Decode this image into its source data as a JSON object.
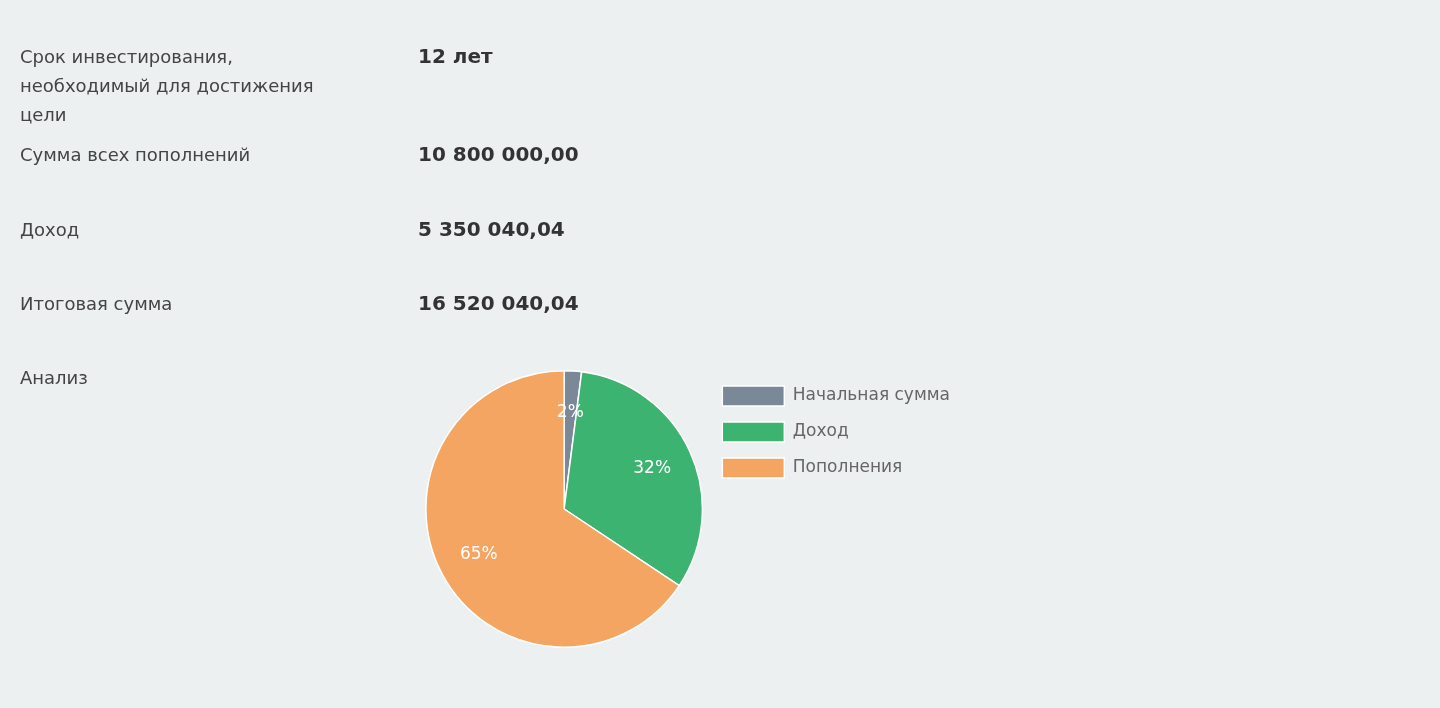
{
  "chart_data": {
    "type": "pie",
    "categories": [
      "Начальная сумма",
      "Доход",
      "Пополнения"
    ],
    "values": [
      2,
      32,
      65
    ],
    "colors": [
      "#7b8898",
      "#3cb371",
      "#f4a561"
    ],
    "value_labels": [
      "2%",
      "32%",
      "65%"
    ],
    "legend": "right",
    "annotations": [
      "Срок инвестирования, необходимый для достижения цели",
      "12 лет",
      "Сумма всех пополнений",
      "10 800 000,00",
      "Доход",
      "5 350 040,04",
      "Итоговая сумма",
      "16 520 040,04",
      "Анализ"
    ]
  }
}
